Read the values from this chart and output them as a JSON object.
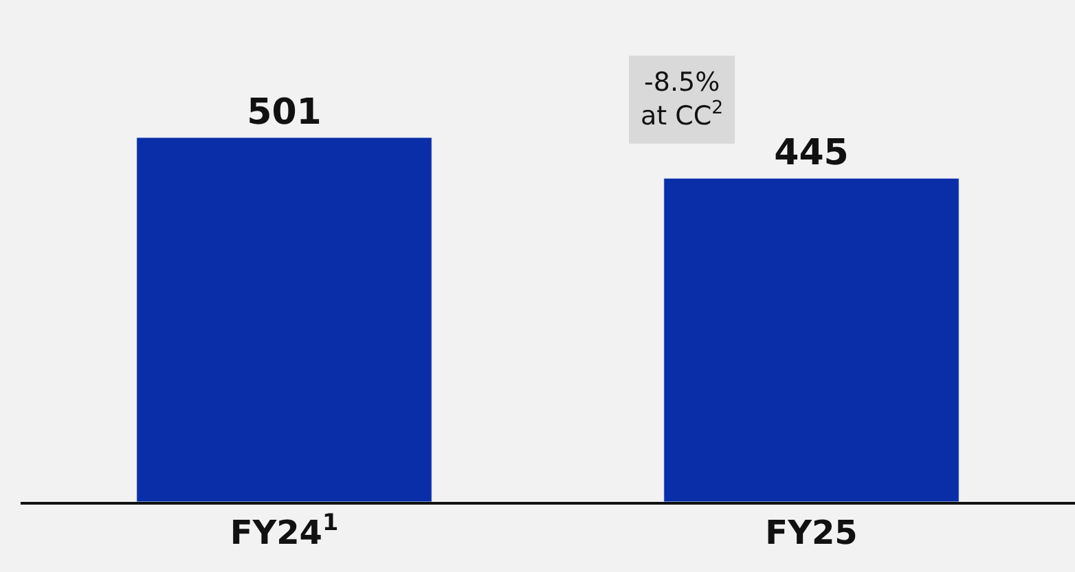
{
  "chart_data": {
    "type": "bar",
    "categories": [
      "FY24$^{1}$",
      "FY25"
    ],
    "values": [
      501,
      445
    ],
    "color": "#0a2ea8",
    "ylim": [
      0,
      690
    ],
    "tick_labels": "x",
    "data_labels": true,
    "grid": false,
    "legend": false,
    "annotations": [
      "-8.5%\nat CC$^{2}$"
    ]
  }
}
